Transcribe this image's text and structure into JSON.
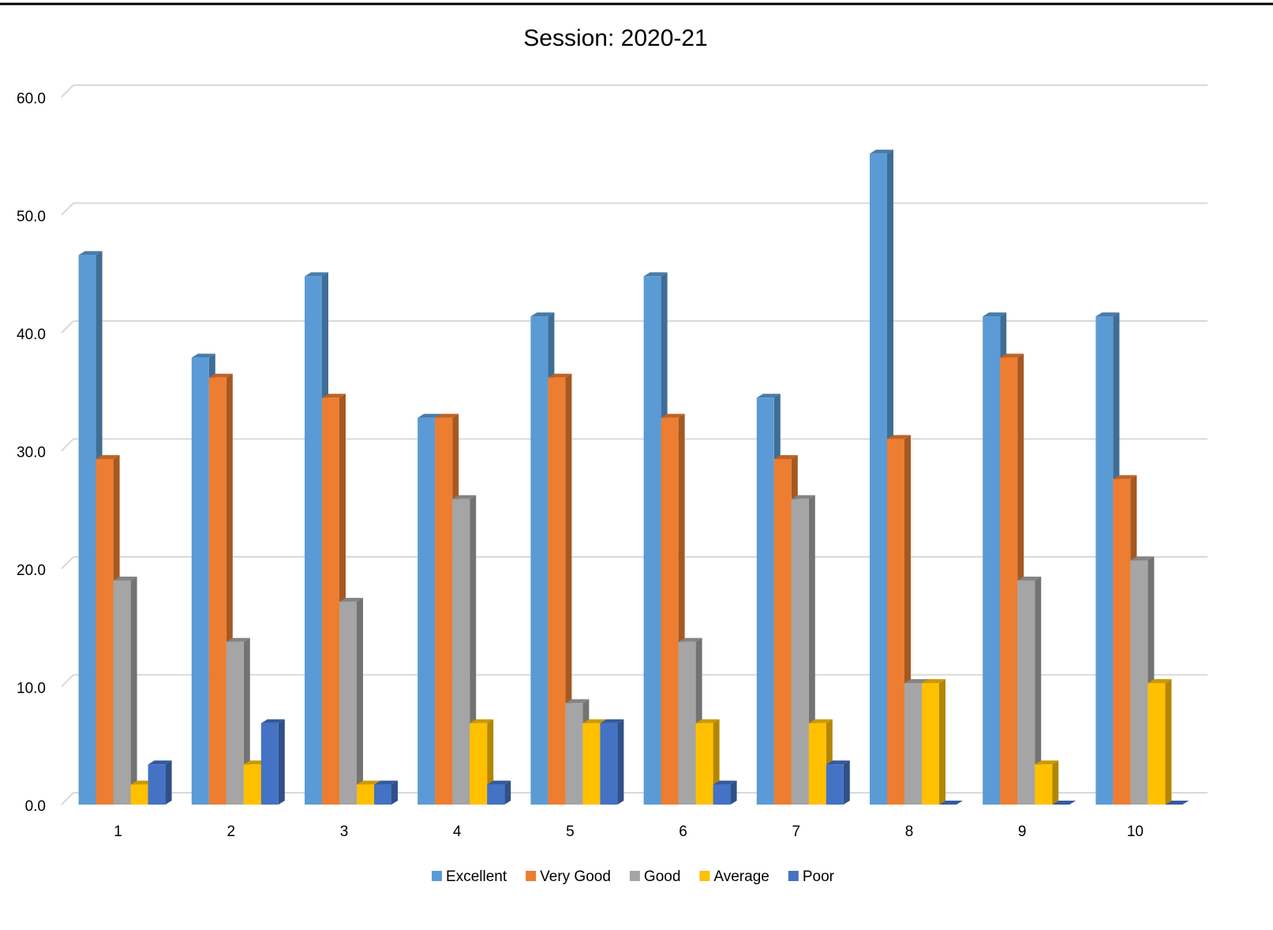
{
  "chart_data": {
    "type": "bar3d",
    "title": "Session: 2020-21",
    "categories": [
      "1",
      "2",
      "3",
      "4",
      "5",
      "6",
      "7",
      "8",
      "9",
      "10"
    ],
    "series": [
      {
        "name": "Excellent",
        "color": "#5b9bd5",
        "values": [
          46.6,
          37.9,
          44.8,
          32.8,
          41.4,
          44.8,
          34.5,
          55.2,
          41.4,
          41.4
        ]
      },
      {
        "name": "Very Good",
        "color": "#ed7d31",
        "values": [
          29.3,
          36.2,
          34.5,
          32.8,
          36.2,
          32.8,
          29.3,
          31.0,
          37.9,
          27.6
        ]
      },
      {
        "name": "Good",
        "color": "#a5a5a5",
        "values": [
          19.0,
          13.8,
          17.2,
          25.9,
          8.6,
          13.8,
          25.9,
          10.3,
          19.0,
          20.7
        ]
      },
      {
        "name": "Average",
        "color": "#ffc000",
        "values": [
          1.7,
          3.4,
          1.7,
          6.9,
          6.9,
          6.9,
          6.9,
          10.3,
          3.4,
          10.3
        ]
      },
      {
        "name": "Poor",
        "color": "#4472c4",
        "values": [
          3.4,
          6.9,
          1.7,
          1.7,
          6.9,
          1.7,
          3.4,
          0,
          0,
          0
        ]
      }
    ],
    "ylim": [
      0,
      60
    ],
    "yticks": [
      {
        "value": 0,
        "label": "0.0"
      },
      {
        "value": 10,
        "label": "10.0"
      },
      {
        "value": 20,
        "label": "20.0"
      },
      {
        "value": 30,
        "label": "30.0"
      },
      {
        "value": 40,
        "label": "40.0"
      },
      {
        "value": 50,
        "label": "50.0"
      },
      {
        "value": 60,
        "label": "60.0"
      }
    ],
    "grid": true,
    "legend": "bottom"
  }
}
